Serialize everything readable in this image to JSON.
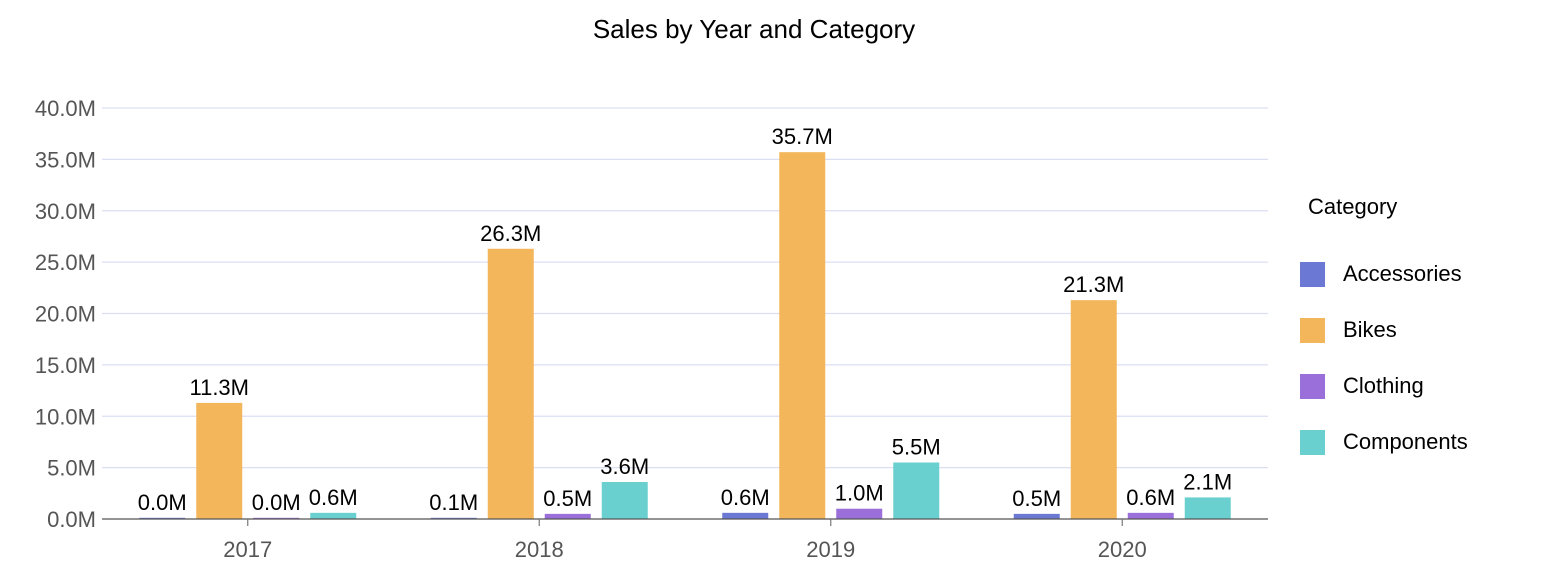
{
  "chart_data": {
    "type": "bar",
    "title": "Sales by Year and Category",
    "xlabel": "",
    "ylabel": "",
    "categories": [
      "2017",
      "2018",
      "2019",
      "2020"
    ],
    "series": [
      {
        "name": "Accessories",
        "color": "#6b78d4",
        "values": [
          0.0,
          0.1,
          0.6,
          0.5
        ],
        "labels": [
          "0.0M",
          "0.1M",
          "0.6M",
          "0.5M"
        ]
      },
      {
        "name": "Bikes",
        "color": "#f3b65b",
        "values": [
          11.3,
          26.3,
          35.7,
          21.3
        ],
        "labels": [
          "11.3M",
          "26.3M",
          "35.7M",
          "21.3M"
        ]
      },
      {
        "name": "Clothing",
        "color": "#9b6fd9",
        "values": [
          0.0,
          0.5,
          1.0,
          0.6
        ],
        "labels": [
          "0.0M",
          "0.5M",
          "1.0M",
          "0.6M"
        ]
      },
      {
        "name": "Components",
        "color": "#69d0cf",
        "values": [
          0.6,
          3.6,
          5.5,
          2.1
        ],
        "labels": [
          "0.6M",
          "3.6M",
          "5.5M",
          "2.1M"
        ]
      }
    ],
    "ylim": [
      0,
      40
    ],
    "yticks": [
      0,
      5,
      10,
      15,
      20,
      25,
      30,
      35,
      40
    ],
    "ytick_labels": [
      "0.0M",
      "5.0M",
      "10.0M",
      "15.0M",
      "20.0M",
      "25.0M",
      "30.0M",
      "35.0M",
      "40.0M"
    ],
    "unit": "M",
    "grid": true,
    "legend": {
      "title": "Category",
      "position": "right"
    }
  }
}
